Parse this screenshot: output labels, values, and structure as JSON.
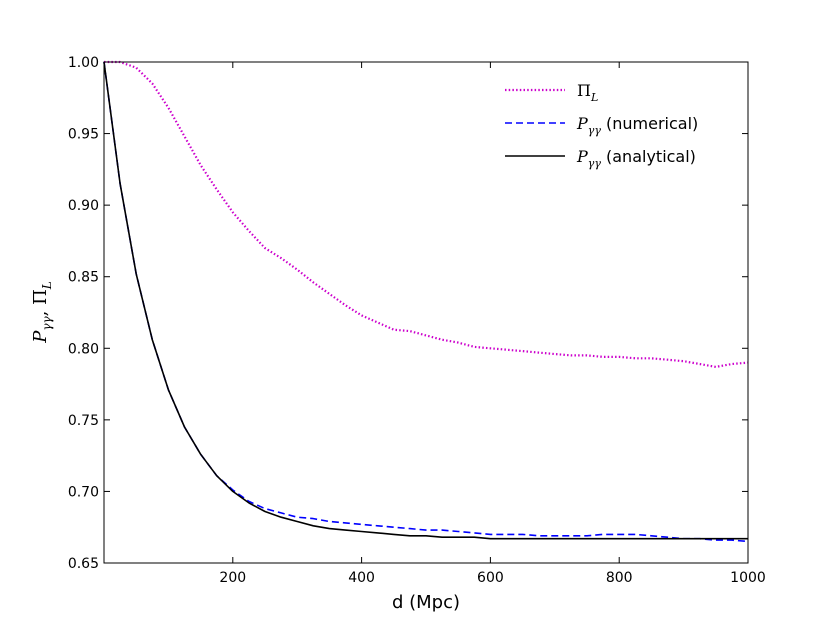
{
  "chart_data": {
    "type": "line",
    "xlabel": "d (Mpc)",
    "ylabel": "Pγγ, ΠL",
    "xlim": [
      0,
      1000
    ],
    "ylim": [
      0.65,
      1.0
    ],
    "x_ticks": [
      200,
      400,
      600,
      800,
      1000
    ],
    "x_tick_labels": [
      "200",
      "400",
      "600",
      "800",
      "1000"
    ],
    "y_ticks": [
      0.65,
      0.7,
      0.75,
      0.8,
      0.85,
      0.9,
      0.95,
      1.0
    ],
    "y_tick_labels": [
      "0.65",
      "0.70",
      "0.75",
      "0.80",
      "0.85",
      "0.90",
      "0.95",
      "1.00"
    ],
    "legend_position": "top-right",
    "grid": false,
    "series": [
      {
        "name": "ΠL",
        "legend_main": "Π",
        "legend_sub": "L",
        "legend_suffix": "",
        "color": "#cc00cc",
        "style": "dotted",
        "x": [
          0,
          25,
          50,
          75,
          100,
          125,
          150,
          175,
          200,
          225,
          250,
          275,
          300,
          325,
          350,
          375,
          400,
          425,
          450,
          475,
          500,
          525,
          550,
          575,
          600,
          625,
          650,
          675,
          700,
          725,
          750,
          775,
          800,
          825,
          850,
          875,
          900,
          925,
          950,
          975,
          1000
        ],
        "y": [
          1.0,
          1.0,
          0.996,
          0.985,
          0.968,
          0.948,
          0.928,
          0.911,
          0.895,
          0.882,
          0.87,
          0.863,
          0.855,
          0.846,
          0.838,
          0.83,
          0.823,
          0.818,
          0.813,
          0.812,
          0.809,
          0.806,
          0.804,
          0.801,
          0.8,
          0.799,
          0.798,
          0.797,
          0.796,
          0.795,
          0.795,
          0.794,
          0.794,
          0.793,
          0.793,
          0.792,
          0.791,
          0.789,
          0.787,
          0.789,
          0.79
        ]
      },
      {
        "name": "Pγγ (numerical)",
        "legend_main": "P",
        "legend_sub": "γγ",
        "legend_suffix": " (numerical)",
        "color": "#0000ff",
        "style": "dashed",
        "x": [
          0,
          25,
          50,
          75,
          100,
          125,
          150,
          175,
          200,
          225,
          250,
          275,
          300,
          325,
          350,
          375,
          400,
          425,
          450,
          475,
          500,
          525,
          550,
          575,
          600,
          625,
          650,
          675,
          700,
          725,
          750,
          775,
          800,
          825,
          850,
          875,
          900,
          925,
          950,
          975,
          1000
        ],
        "y": [
          1.0,
          0.915,
          0.852,
          0.806,
          0.771,
          0.745,
          0.726,
          0.711,
          0.701,
          0.693,
          0.688,
          0.685,
          0.682,
          0.681,
          0.679,
          0.678,
          0.677,
          0.676,
          0.675,
          0.674,
          0.673,
          0.673,
          0.672,
          0.671,
          0.67,
          0.67,
          0.67,
          0.669,
          0.669,
          0.669,
          0.669,
          0.67,
          0.67,
          0.67,
          0.669,
          0.668,
          0.667,
          0.667,
          0.666,
          0.666,
          0.665
        ]
      },
      {
        "name": "Pγγ (analytical)",
        "legend_main": "P",
        "legend_sub": "γγ",
        "legend_suffix": " (analytical)",
        "color": "#000000",
        "style": "solid",
        "x": [
          0,
          25,
          50,
          75,
          100,
          125,
          150,
          175,
          200,
          225,
          250,
          275,
          300,
          325,
          350,
          375,
          400,
          425,
          450,
          475,
          500,
          525,
          550,
          575,
          600,
          625,
          650,
          675,
          700,
          725,
          750,
          775,
          800,
          825,
          850,
          875,
          900,
          925,
          950,
          975,
          1000
        ],
        "y": [
          1.0,
          0.915,
          0.852,
          0.806,
          0.771,
          0.745,
          0.726,
          0.711,
          0.7,
          0.692,
          0.686,
          0.682,
          0.679,
          0.676,
          0.674,
          0.673,
          0.672,
          0.671,
          0.67,
          0.669,
          0.669,
          0.668,
          0.668,
          0.668,
          0.667,
          0.667,
          0.667,
          0.667,
          0.667,
          0.667,
          0.667,
          0.667,
          0.667,
          0.667,
          0.667,
          0.667,
          0.667,
          0.667,
          0.667,
          0.667,
          0.667
        ]
      }
    ]
  }
}
